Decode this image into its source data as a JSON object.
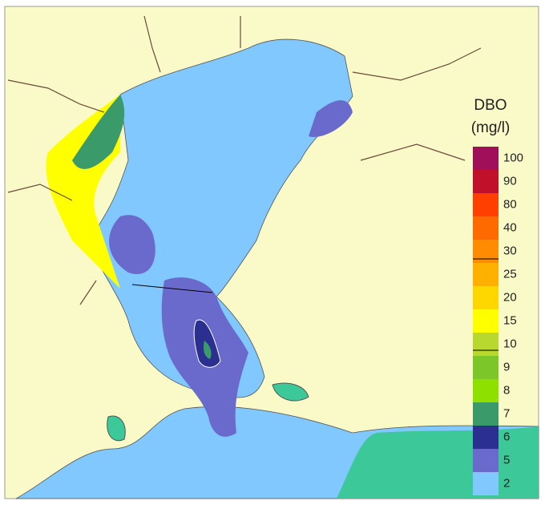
{
  "legend": {
    "title": "DBO",
    "unit": "(mg/l)",
    "levels": [
      {
        "value": 2,
        "color": "#80c8ff"
      },
      {
        "value": 5,
        "color": "#6a6acd"
      },
      {
        "value": 6,
        "color": "#2b2f8f"
      },
      {
        "value": 7,
        "color": "#3a9a6a"
      },
      {
        "value": 8,
        "color": "#8ee000"
      },
      {
        "value": 9,
        "color": "#7cc62a"
      },
      {
        "value": 10,
        "color": "#b8d830"
      },
      {
        "value": 15,
        "color": "#ffff00"
      },
      {
        "value": 20,
        "color": "#ffd700"
      },
      {
        "value": 25,
        "color": "#ffb000"
      },
      {
        "value": 30,
        "color": "#ff8c00"
      },
      {
        "value": 40,
        "color": "#ff6a00"
      },
      {
        "value": 80,
        "color": "#ff4000"
      },
      {
        "value": 90,
        "color": "#c0102a"
      },
      {
        "value": 100,
        "color": "#a0105a"
      }
    ],
    "top_color": "#5a0070"
  }
}
